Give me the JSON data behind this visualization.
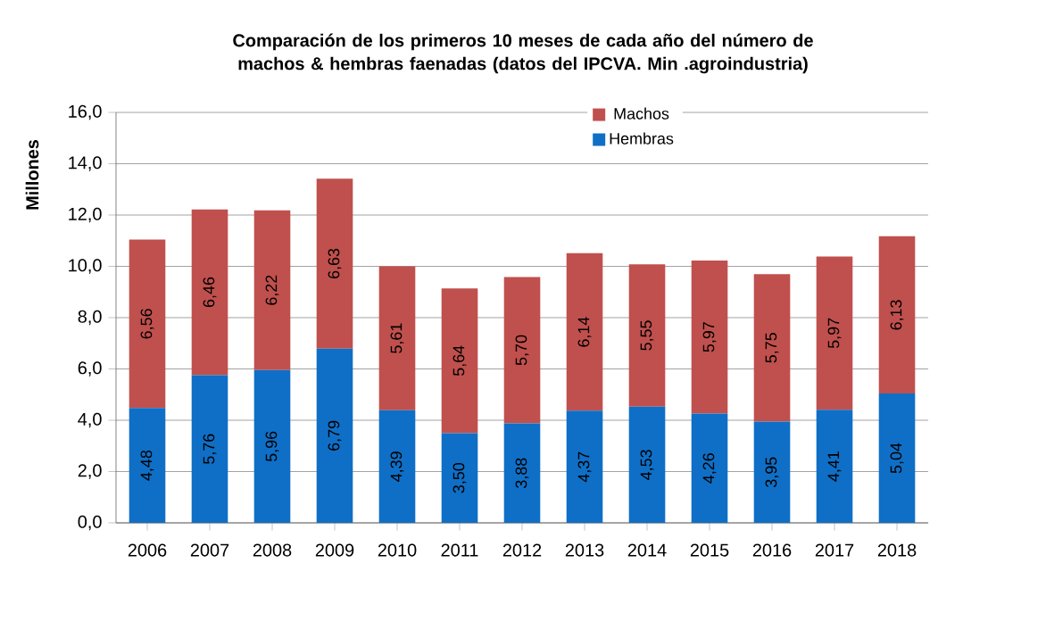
{
  "chart_data": {
    "type": "bar",
    "stacked": true,
    "title": "Comparación de los primeros 10 meses de cada año del número de machos & hembras faenadas (datos del IPCVA. Min .agroindustria)",
    "ylabel": "Millones",
    "categories": [
      "2006",
      "2007",
      "2008",
      "2009",
      "2010",
      "2011",
      "2012",
      "2013",
      "2014",
      "2015",
      "2016",
      "2017",
      "2018"
    ],
    "series": [
      {
        "name": "Hembras",
        "color": "#0f6fc6",
        "values": [
          4.48,
          5.76,
          5.96,
          6.79,
          4.39,
          3.5,
          3.88,
          4.37,
          4.53,
          4.26,
          3.95,
          4.41,
          5.04
        ],
        "value_labels": [
          "4,48",
          "5,76",
          "5,96",
          "6,79",
          "4,39",
          "3,50",
          "3,88",
          "4,37",
          "4,53",
          "4,26",
          "3,95",
          "4,41",
          "5,04"
        ]
      },
      {
        "name": "Machos",
        "color": "#c0504d",
        "values": [
          6.56,
          6.46,
          6.22,
          6.63,
          5.61,
          5.64,
          5.7,
          6.14,
          5.55,
          5.97,
          5.75,
          5.97,
          6.13
        ],
        "value_labels": [
          "6,56",
          "6,46",
          "6,22",
          "6,63",
          "5,61",
          "5,64",
          "5,70",
          "6,14",
          "5,55",
          "5,97",
          "5,75",
          "5,97",
          "6,13"
        ]
      }
    ],
    "ylim": [
      0,
      16
    ],
    "yticks": [
      {
        "value": 0,
        "label": "0,0"
      },
      {
        "value": 2,
        "label": "2,0"
      },
      {
        "value": 4,
        "label": "4,0"
      },
      {
        "value": 6,
        "label": "6,0"
      },
      {
        "value": 8,
        "label": "8,0"
      },
      {
        "value": 10,
        "label": "10,0"
      },
      {
        "value": 12,
        "label": "12,0"
      },
      {
        "value": 14,
        "label": "14,0"
      },
      {
        "value": 16,
        "label": "16,0"
      }
    ],
    "grid": "y",
    "legend": "top right"
  }
}
